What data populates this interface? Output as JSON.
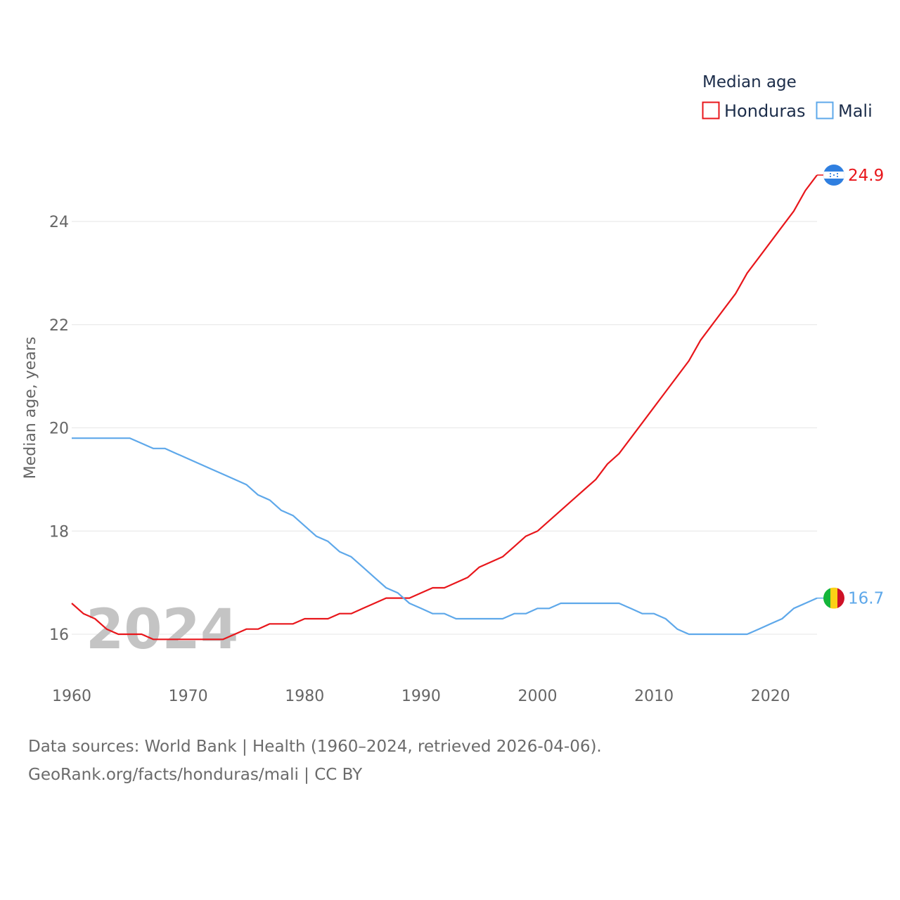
{
  "chart_data": {
    "type": "line",
    "legend_title": "Median age",
    "ylabel": "Median age, years",
    "xlabel": "",
    "xlim": [
      1960,
      2024
    ],
    "ylim": [
      15,
      25
    ],
    "x_ticks": [
      1960,
      1970,
      1980,
      1990,
      2000,
      2010,
      2020
    ],
    "y_ticks": [
      16,
      18,
      20,
      22,
      24
    ],
    "highlight_year": "2024",
    "legend_position": "top-right",
    "x": [
      1960,
      1961,
      1962,
      1963,
      1964,
      1965,
      1966,
      1967,
      1968,
      1969,
      1970,
      1971,
      1972,
      1973,
      1974,
      1975,
      1976,
      1977,
      1978,
      1979,
      1980,
      1981,
      1982,
      1983,
      1984,
      1985,
      1986,
      1987,
      1988,
      1989,
      1990,
      1991,
      1992,
      1993,
      1994,
      1995,
      1996,
      1997,
      1998,
      1999,
      2000,
      2001,
      2002,
      2003,
      2004,
      2005,
      2006,
      2007,
      2008,
      2009,
      2010,
      2011,
      2012,
      2013,
      2014,
      2015,
      2016,
      2017,
      2018,
      2019,
      2020,
      2021,
      2022,
      2023,
      2024
    ],
    "series": [
      {
        "name": "Honduras",
        "color": "#e8161b",
        "end_label": "24.9",
        "values": [
          16.6,
          16.4,
          16.3,
          16.1,
          16.0,
          16.0,
          16.0,
          15.9,
          15.9,
          15.9,
          15.9,
          15.9,
          15.9,
          15.9,
          16.0,
          16.1,
          16.1,
          16.2,
          16.2,
          16.2,
          16.3,
          16.3,
          16.3,
          16.4,
          16.4,
          16.5,
          16.6,
          16.7,
          16.7,
          16.7,
          16.8,
          16.9,
          16.9,
          17.0,
          17.1,
          17.3,
          17.4,
          17.5,
          17.7,
          17.9,
          18.0,
          18.2,
          18.4,
          18.6,
          18.8,
          19.0,
          19.3,
          19.5,
          19.8,
          20.1,
          20.4,
          20.7,
          21.0,
          21.3,
          21.7,
          22.0,
          22.3,
          22.6,
          23.0,
          23.3,
          23.6,
          23.9,
          24.2,
          24.6,
          24.9
        ]
      },
      {
        "name": "Mali",
        "color": "#5ea8ea",
        "end_label": "16.7",
        "values": [
          19.8,
          19.8,
          19.8,
          19.8,
          19.8,
          19.8,
          19.7,
          19.6,
          19.6,
          19.5,
          19.4,
          19.3,
          19.2,
          19.1,
          19.0,
          18.9,
          18.7,
          18.6,
          18.4,
          18.3,
          18.1,
          17.9,
          17.8,
          17.6,
          17.5,
          17.3,
          17.1,
          16.9,
          16.8,
          16.6,
          16.5,
          16.4,
          16.4,
          16.3,
          16.3,
          16.3,
          16.3,
          16.3,
          16.4,
          16.4,
          16.5,
          16.5,
          16.6,
          16.6,
          16.6,
          16.6,
          16.6,
          16.6,
          16.5,
          16.4,
          16.4,
          16.3,
          16.1,
          16.0,
          16.0,
          16.0,
          16.0,
          16.0,
          16.0,
          16.1,
          16.2,
          16.3,
          16.5,
          16.6,
          16.7
        ]
      }
    ]
  },
  "footer": {
    "line1": "Data sources: World Bank | Health (1960–2024, retrieved 2026-04-06).",
    "line2": "GeoRank.org/facts/honduras/mali | CC BY"
  },
  "flags": {
    "honduras_colors": [
      "#2f7fe0",
      "#ffffff"
    ],
    "mali_colors": [
      "#14b53a",
      "#fcd116",
      "#ce1126"
    ]
  }
}
